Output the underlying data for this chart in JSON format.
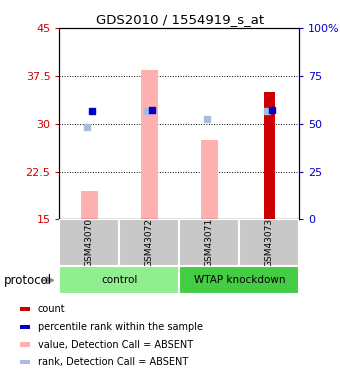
{
  "title": "GDS2010 / 1554919_s_at",
  "samples": [
    "GSM43070",
    "GSM43072",
    "GSM43071",
    "GSM43073"
  ],
  "ylim_left": [
    15,
    45
  ],
  "ylim_right": [
    0,
    100
  ],
  "yticks_left": [
    15,
    22.5,
    30,
    37.5,
    45
  ],
  "ytick_labels_left": [
    "15",
    "22.5",
    "30",
    "37.5",
    "45"
  ],
  "yticks_right": [
    0,
    25,
    50,
    75,
    100
  ],
  "ytick_labels_right": [
    "0",
    "25",
    "50",
    "75",
    "100%"
  ],
  "bar_values_pink": [
    19.5,
    38.5,
    27.5,
    35.0
  ],
  "bar_bottom": 15,
  "pink_bar_width": 0.28,
  "red_bar_width": 0.18,
  "blue_square_light_values": [
    29.5,
    32.0,
    30.7,
    32.0
  ],
  "blue_square_dark_values": [
    32.0,
    32.2,
    null,
    32.2
  ],
  "red_bar_index": 3,
  "grid_lines": [
    22.5,
    30.0,
    37.5
  ],
  "left_color": "#CC0000",
  "right_color": "#0000CC",
  "pink_color": "#FFB0B0",
  "light_blue_color": "#AABBDD",
  "red_bar_color": "#CC0000",
  "blue_sq_color": "#0000CC",
  "control_color": "#90EE90",
  "wtap_color": "#44CC44",
  "sample_bg_color": "#C8C8C8",
  "legend_labels": [
    "count",
    "percentile rank within the sample",
    "value, Detection Call = ABSENT",
    "rank, Detection Call = ABSENT"
  ],
  "legend_colors": [
    "#CC0000",
    "#0000CC",
    "#FFB0B0",
    "#AABBDD"
  ]
}
